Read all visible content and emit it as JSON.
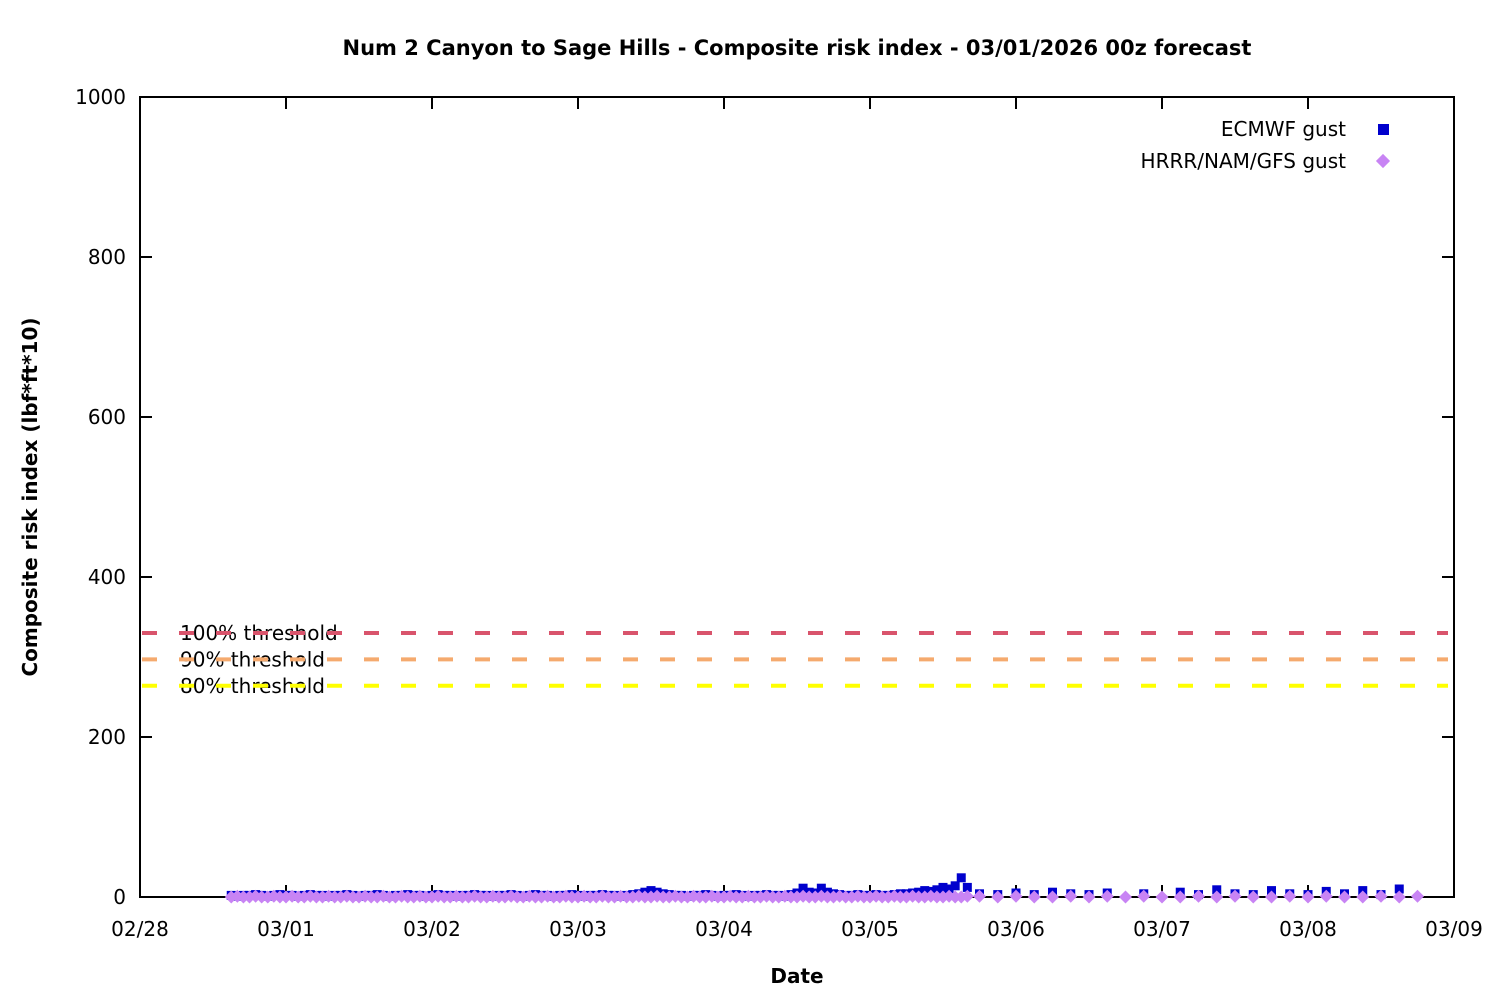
{
  "chart_data": {
    "type": "scatter",
    "title": "Num 2 Canyon to Sage Hills - Composite risk index - 03/01/2026 00z forecast",
    "xlabel": "Date",
    "ylabel": "Composite risk index (lbf*ft*10)",
    "x_tick_labels": [
      "02/28",
      "03/01",
      "03/02",
      "03/03",
      "03/04",
      "03/05",
      "03/06",
      "03/07",
      "03/08",
      "03/09"
    ],
    "y_tick_labels": [
      "0",
      "200",
      "400",
      "600",
      "800",
      "1000"
    ],
    "y_ticks": [
      0,
      200,
      400,
      600,
      800,
      1000
    ],
    "ylim": [
      0,
      1000
    ],
    "xlim_days_from_0228": [
      0,
      9
    ],
    "grid": false,
    "legend_position": "top-right-inside",
    "legend": [
      {
        "label": "ECMWF gust",
        "marker": "square",
        "color": "#0000cd"
      },
      {
        "label": "HRRR/NAM/GFS gust",
        "marker": "diamond",
        "color": "#c884f4"
      }
    ],
    "thresholds": [
      {
        "label": "100% threshold",
        "value": 330,
        "color": "#d9546c",
        "style": "dashed"
      },
      {
        "label": "90% threshold",
        "value": 297,
        "color": "#f5aa6e",
        "style": "dashed"
      },
      {
        "label": "80% threshold",
        "value": 264,
        "color": "#ffff00",
        "style": "dashed"
      }
    ],
    "x_unit": "days after 02/28 00:00",
    "series": [
      {
        "name": "ECMWF gust",
        "marker": "square",
        "color": "#0000cd",
        "segments": [
          {
            "start_day": 0.625,
            "step_days": 0.0416667,
            "values": [
              2,
              1,
              2,
              2,
              3,
              2,
              1,
              2,
              3,
              2,
              2,
              1,
              2,
              3,
              2,
              2,
              1,
              2,
              2,
              3,
              2,
              1,
              2,
              2,
              3,
              2,
              1,
              2,
              2,
              3,
              2,
              2,
              1,
              2,
              3,
              2,
              2,
              1,
              2,
              2,
              3,
              2,
              2,
              1,
              2,
              2,
              3,
              2,
              1,
              2,
              3,
              2,
              2,
              1,
              2,
              2,
              3,
              2,
              1,
              2,
              2,
              3,
              2,
              2,
              1,
              2,
              3,
              4,
              6,
              8,
              6,
              4,
              3,
              2,
              2,
              1,
              2,
              2,
              3,
              2,
              1,
              2,
              2,
              3,
              2,
              1,
              2,
              2,
              3,
              2,
              2,
              1,
              3,
              5,
              11,
              6,
              5,
              11,
              6,
              4,
              3,
              2,
              2,
              3,
              2,
              2,
              3,
              2,
              2,
              3,
              4,
              4,
              5,
              6,
              8,
              7,
              9,
              12,
              10,
              14,
              24,
              12
            ]
          },
          {
            "start_day": 5.75,
            "step_days": 0.125,
            "values": [
              4,
              3,
              5,
              3,
              6,
              4,
              3,
              5,
              null,
              4,
              null,
              6,
              3,
              9,
              4,
              3,
              8,
              4,
              3,
              7,
              4,
              8,
              3,
              10
            ]
          }
        ]
      },
      {
        "name": "HRRR/NAM/GFS gust",
        "marker": "diamond",
        "color": "#c884f4",
        "segments": [
          {
            "start_day": 0.625,
            "step_days": 0.0416667,
            "values": [
              0,
              1,
              0,
              0,
              1,
              0,
              0,
              1,
              0,
              0,
              1,
              0,
              0,
              1,
              0,
              0,
              1,
              0,
              0,
              1,
              0,
              0,
              1,
              0,
              0,
              1,
              0,
              0,
              1,
              0,
              0,
              1,
              0,
              0,
              1,
              0,
              0,
              1,
              0,
              0,
              1,
              0,
              0,
              1,
              0,
              0,
              1,
              0,
              0,
              1,
              0,
              0,
              1,
              0,
              0,
              1,
              0,
              0,
              1,
              0,
              0,
              1,
              0,
              0,
              1,
              0,
              0,
              1,
              0,
              0,
              1,
              0,
              0,
              1,
              0,
              0,
              1,
              0,
              0,
              1,
              0,
              0,
              1,
              0,
              0,
              1,
              0,
              0,
              1,
              0,
              0,
              1,
              0,
              0,
              1,
              0,
              0,
              1,
              0,
              0,
              1,
              0,
              0,
              1,
              0,
              0,
              1,
              0,
              0,
              1,
              0,
              0,
              1,
              0,
              0,
              1,
              0,
              0,
              1,
              0,
              0,
              1
            ]
          },
          {
            "start_day": 5.75,
            "step_days": 0.125,
            "values": [
              1,
              0,
              1,
              0,
              0,
              1,
              0,
              1,
              0,
              1,
              0,
              0,
              1,
              0,
              1,
              0,
              0,
              1,
              0,
              1,
              0,
              0,
              1,
              0,
              1
            ]
          }
        ]
      }
    ]
  }
}
